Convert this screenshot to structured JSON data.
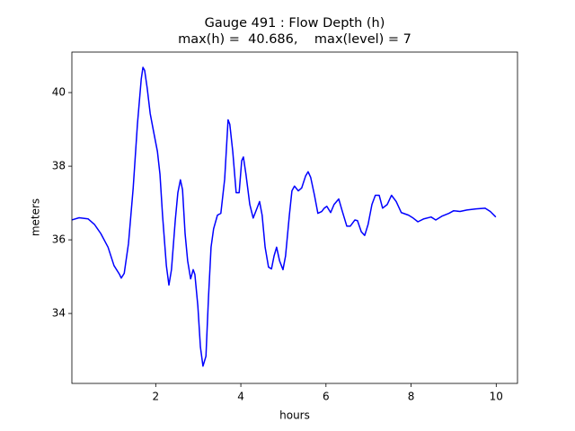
{
  "chart_data": {
    "type": "line",
    "title": "Gauge 491 : Flow Depth (h)",
    "subtitle": "max(h) =  40.686,    max(level) = 7",
    "x_label": "hours",
    "y_label": "meters",
    "xlim": [
      0.03,
      10.5
    ],
    "ylim": [
      32.1,
      41.1
    ],
    "xticks": [
      2,
      4,
      6,
      8,
      10
    ],
    "yticks": [
      34,
      36,
      38,
      40
    ],
    "grid": false,
    "series": [
      {
        "name": "h",
        "color": "#0000ff",
        "x": [
          0.03,
          0.2,
          0.41,
          0.56,
          0.71,
          0.88,
          1.02,
          1.15,
          1.19,
          1.26,
          1.36,
          1.47,
          1.57,
          1.66,
          1.7,
          1.74,
          1.8,
          1.87,
          1.95,
          2.04,
          2.1,
          2.16,
          2.25,
          2.31,
          2.37,
          2.46,
          2.52,
          2.58,
          2.63,
          2.69,
          2.75,
          2.82,
          2.88,
          2.92,
          2.99,
          3.05,
          3.11,
          3.18,
          3.24,
          3.3,
          3.36,
          3.45,
          3.53,
          3.62,
          3.7,
          3.74,
          3.81,
          3.89,
          3.96,
          4.02,
          4.06,
          4.12,
          4.21,
          4.29,
          4.38,
          4.44,
          4.5,
          4.57,
          4.65,
          4.72,
          4.78,
          4.84,
          4.91,
          4.99,
          5.05,
          5.14,
          5.2,
          5.26,
          5.35,
          5.43,
          5.52,
          5.58,
          5.64,
          5.73,
          5.81,
          5.9,
          5.96,
          6.02,
          6.11,
          6.19,
          6.3,
          6.38,
          6.49,
          6.57,
          6.68,
          6.74,
          6.83,
          6.91,
          6.99,
          7.08,
          7.16,
          7.25,
          7.33,
          7.44,
          7.54,
          7.65,
          7.77,
          7.94,
          8.05,
          8.16,
          8.3,
          8.47,
          8.58,
          8.72,
          8.89,
          9.0,
          9.15,
          9.31,
          9.53,
          9.74,
          9.86,
          9.99
        ],
        "values": [
          36.54,
          36.6,
          36.57,
          36.42,
          36.17,
          35.8,
          35.3,
          35.06,
          34.96,
          35.09,
          35.9,
          37.4,
          39.14,
          40.37,
          40.686,
          40.6,
          40.12,
          39.43,
          38.94,
          38.4,
          37.78,
          36.67,
          35.3,
          34.77,
          35.19,
          36.54,
          37.28,
          37.63,
          37.36,
          36.17,
          35.43,
          34.94,
          35.19,
          35.06,
          34.2,
          33.09,
          32.57,
          32.84,
          34.44,
          35.8,
          36.3,
          36.67,
          36.72,
          37.65,
          39.26,
          39.14,
          38.4,
          37.28,
          37.28,
          38.15,
          38.25,
          37.78,
          36.96,
          36.59,
          36.86,
          37.04,
          36.67,
          35.8,
          35.26,
          35.21,
          35.56,
          35.8,
          35.43,
          35.19,
          35.56,
          36.67,
          37.33,
          37.46,
          37.33,
          37.41,
          37.73,
          37.85,
          37.7,
          37.21,
          36.72,
          36.77,
          36.86,
          36.91,
          36.74,
          36.96,
          37.11,
          36.79,
          36.37,
          36.37,
          36.54,
          36.52,
          36.22,
          36.12,
          36.42,
          36.96,
          37.21,
          37.21,
          36.86,
          36.96,
          37.21,
          37.04,
          36.74,
          36.67,
          36.59,
          36.49,
          36.57,
          36.62,
          36.54,
          36.64,
          36.72,
          36.79,
          36.77,
          36.81,
          36.84,
          36.86,
          36.77,
          36.62
        ]
      }
    ]
  }
}
